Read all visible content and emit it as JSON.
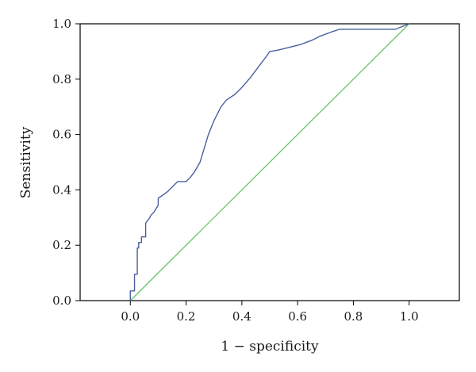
{
  "chart_data": {
    "type": "line",
    "title": "",
    "xlabel": "1 − specificity",
    "ylabel": "Sensitivity",
    "xlim": [
      -0.18,
      1.18
    ],
    "ylim": [
      0.0,
      1.0
    ],
    "xticks": [
      0.0,
      0.2,
      0.4,
      0.6,
      0.8,
      1.0
    ],
    "yticks": [
      0.0,
      0.2,
      0.4,
      0.6,
      0.8,
      1.0
    ],
    "xtick_labels": [
      "0.0",
      "0.2",
      "0.4",
      "0.6",
      "0.8",
      "1.0"
    ],
    "ytick_labels": [
      "0.0",
      "0.2",
      "0.4",
      "0.6",
      "0.8",
      "1.0"
    ],
    "grid": false,
    "series": [
      {
        "color": "#4a60a0",
        "style": "step",
        "x": [
          0.0,
          0.0,
          0.015,
          0.015,
          0.025,
          0.025,
          0.03,
          0.03,
          0.04,
          0.04,
          0.055,
          0.055,
          0.07,
          0.075,
          0.085,
          0.1,
          0.1,
          0.115,
          0.135,
          0.155,
          0.17,
          0.2,
          0.215,
          0.23,
          0.25,
          0.265,
          0.28,
          0.3,
          0.325,
          0.345,
          0.375,
          0.4,
          0.43,
          0.46,
          0.49,
          0.5,
          0.53,
          0.57,
          0.61,
          0.65,
          0.68,
          0.72,
          0.75,
          0.8,
          0.85,
          0.9,
          0.95,
          1.0
        ],
        "y": [
          0.0,
          0.035,
          0.035,
          0.095,
          0.095,
          0.19,
          0.19,
          0.21,
          0.21,
          0.23,
          0.23,
          0.28,
          0.3,
          0.31,
          0.32,
          0.345,
          0.37,
          0.38,
          0.395,
          0.415,
          0.43,
          0.43,
          0.445,
          0.465,
          0.5,
          0.55,
          0.6,
          0.65,
          0.7,
          0.725,
          0.745,
          0.77,
          0.805,
          0.845,
          0.885,
          0.9,
          0.905,
          0.915,
          0.925,
          0.94,
          0.955,
          0.97,
          0.98,
          0.98,
          0.98,
          0.98,
          0.98,
          1.0
        ]
      },
      {
        "color": "#6cc46c",
        "style": "reference",
        "x": [
          0.0,
          1.0
        ],
        "y": [
          0.0,
          1.0
        ]
      }
    ]
  }
}
